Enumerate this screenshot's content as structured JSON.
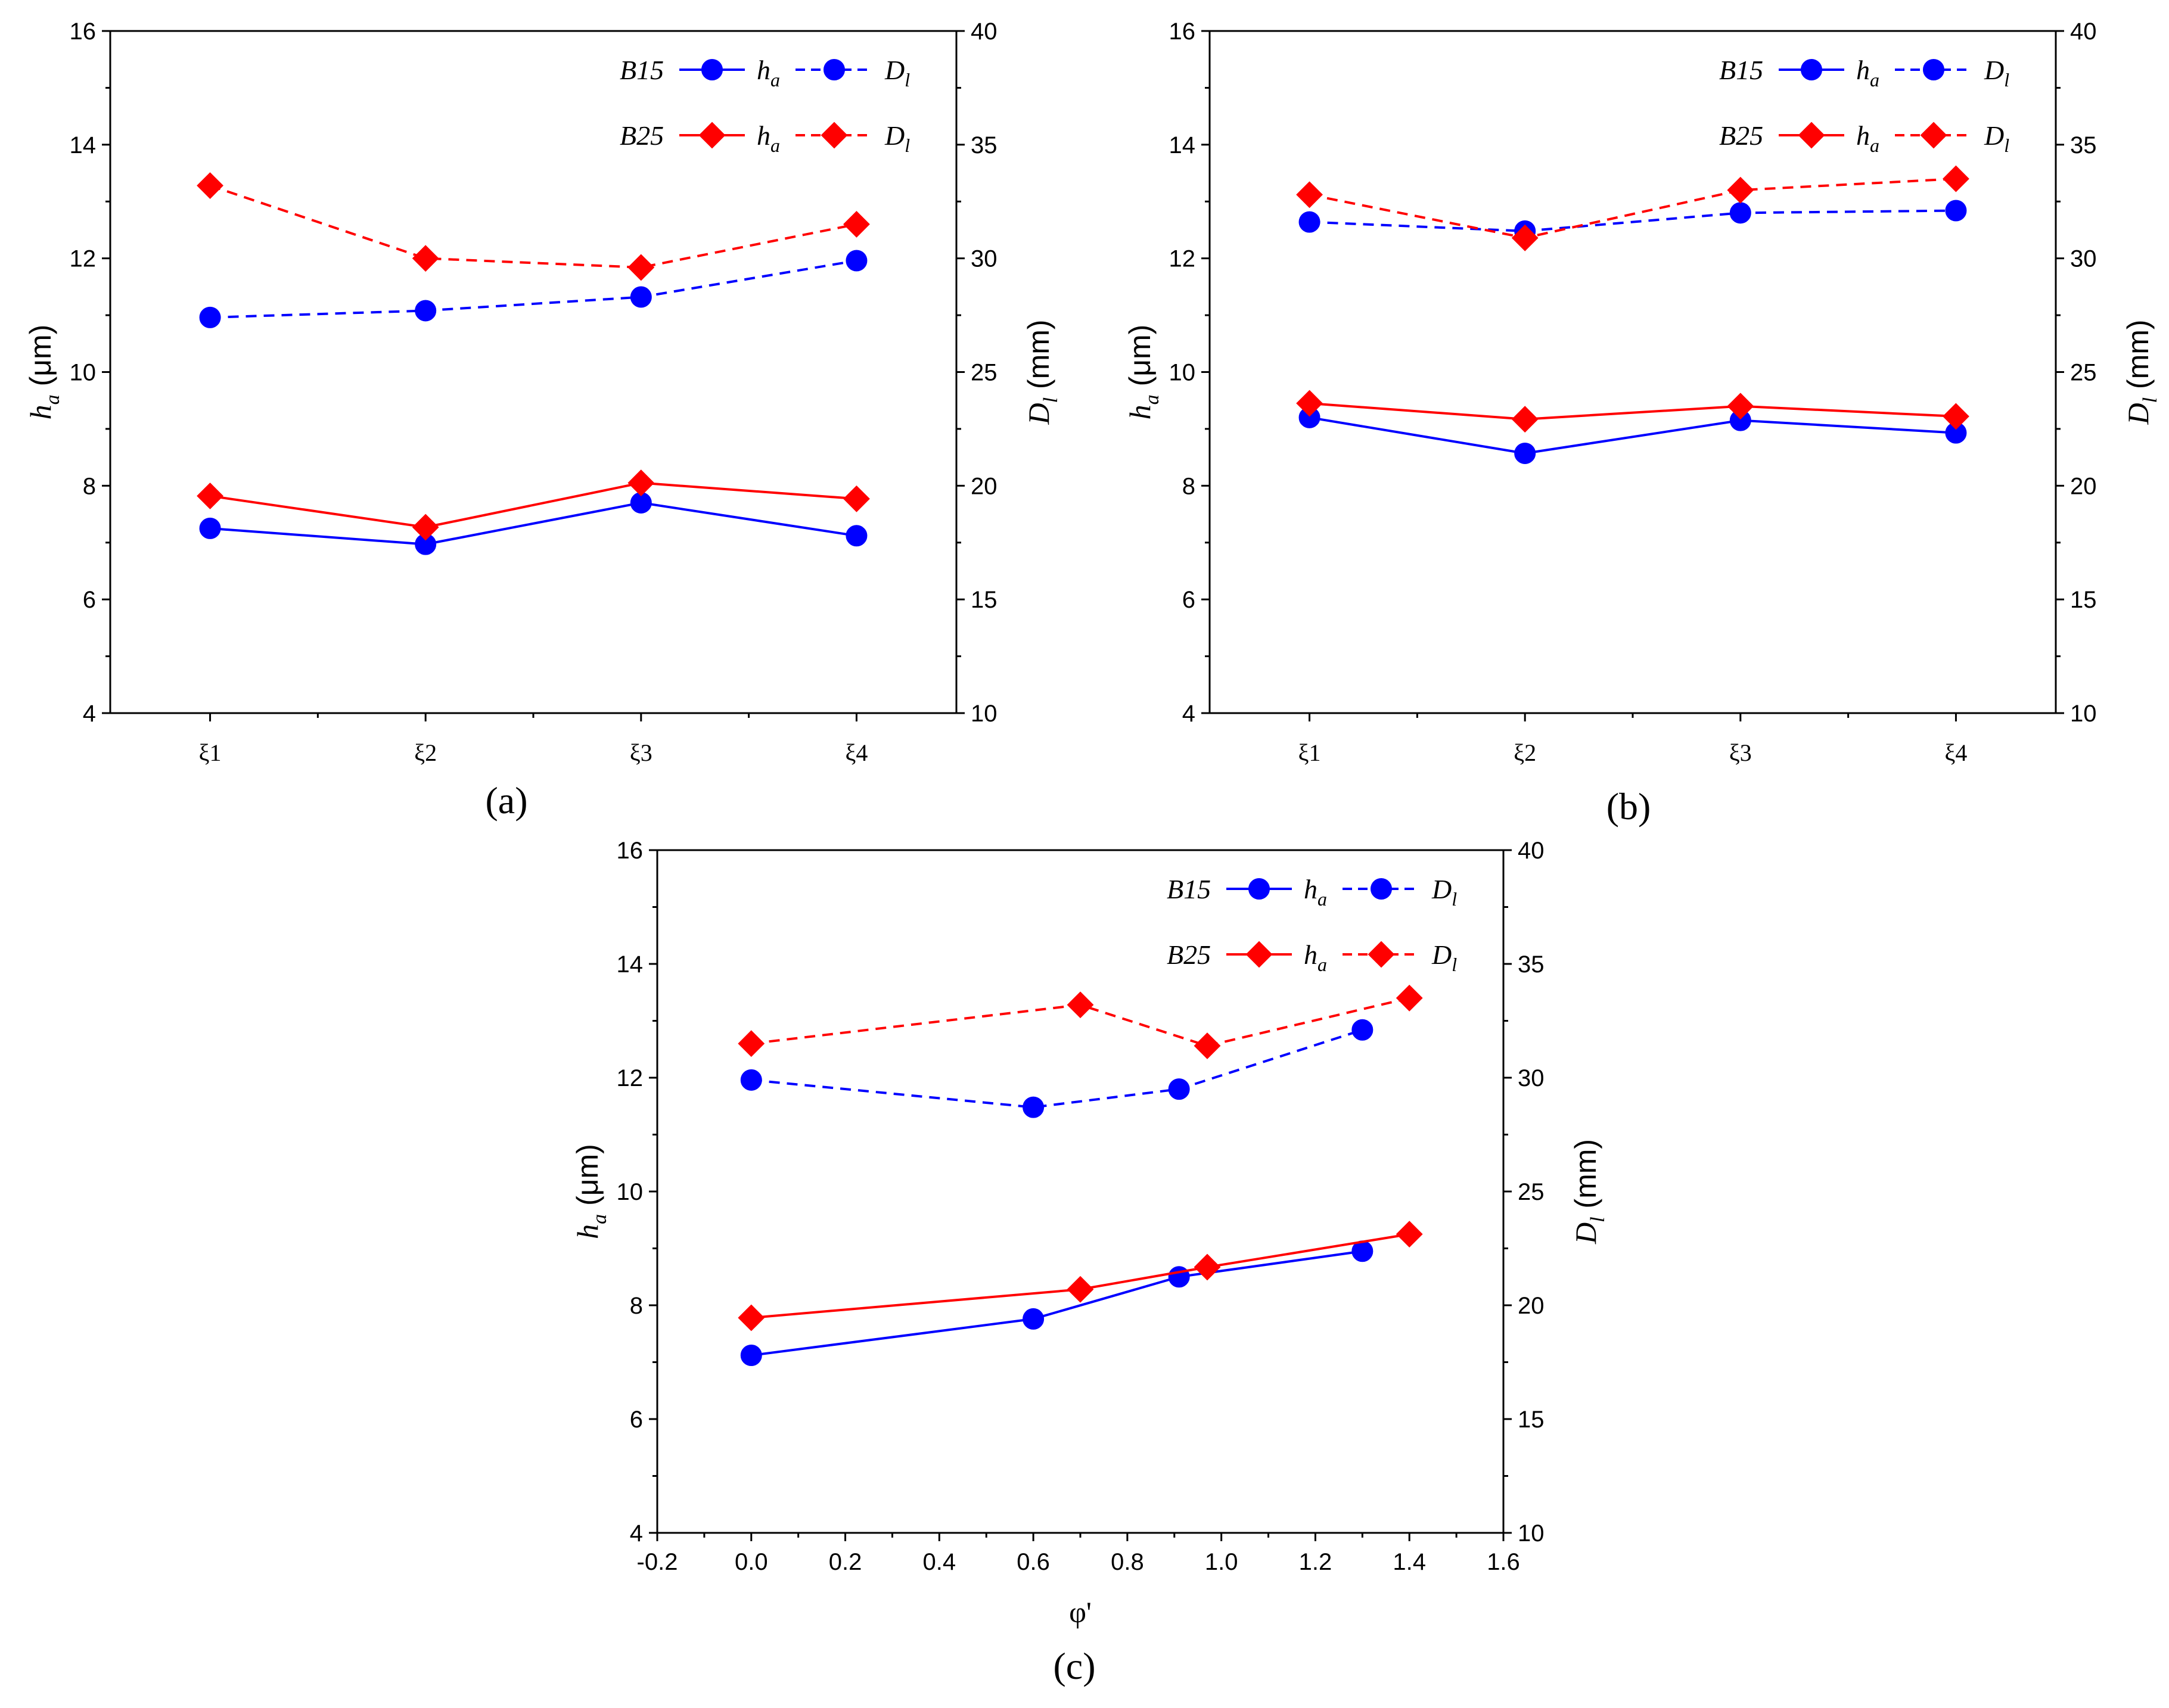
{
  "colors": {
    "b15": "#0000ff",
    "b25": "#ff0000",
    "axis": "#000000"
  },
  "legend": {
    "rows": [
      {
        "group": "B15",
        "color_key": "b15",
        "marker": "circle",
        "ha_label": "h",
        "ha_sub": "a",
        "dl_label": "D",
        "dl_sub": "l"
      },
      {
        "group": "B25",
        "color_key": "b25",
        "marker": "diamond",
        "ha_label": "h",
        "ha_sub": "a",
        "dl_label": "D",
        "dl_sub": "l"
      }
    ]
  },
  "chart_data": [
    {
      "type": "line",
      "panel_label": "(a)",
      "x_type": "category",
      "categories": [
        "ξ1",
        "ξ2",
        "ξ3",
        "ξ4"
      ],
      "xlabel": "",
      "ylabel_left": {
        "main": "h",
        "sub": "a",
        "unit": " (μm)"
      },
      "ylabel_right": {
        "main": "D",
        "sub": "l",
        "unit": " (mm)"
      },
      "ylim_left": [
        4,
        16
      ],
      "yticks_left": [
        4,
        6,
        8,
        10,
        12,
        14,
        16
      ],
      "ylim_right": [
        10,
        40
      ],
      "yticks_right": [
        10,
        15,
        20,
        25,
        30,
        35,
        40
      ],
      "grid": false,
      "legend_position": "top-right",
      "series": [
        {
          "name": "B15 h_a",
          "axis": "left",
          "style": "solid",
          "marker": "circle",
          "color_key": "b15",
          "x": [
            0,
            1,
            2,
            3
          ],
          "values": [
            7.25,
            6.97,
            7.7,
            7.12
          ]
        },
        {
          "name": "B15 D_l",
          "axis": "right",
          "style": "dashed",
          "marker": "circle",
          "color_key": "b15",
          "x": [
            0,
            1,
            2,
            3
          ],
          "values": [
            27.4,
            27.7,
            28.3,
            29.9
          ]
        },
        {
          "name": "B25 h_a",
          "axis": "left",
          "style": "solid",
          "marker": "diamond",
          "color_key": "b25",
          "x": [
            0,
            1,
            2,
            3
          ],
          "values": [
            7.82,
            7.27,
            8.05,
            7.77
          ]
        },
        {
          "name": "B25 D_l",
          "axis": "right",
          "style": "dashed",
          "marker": "diamond",
          "color_key": "b25",
          "x": [
            0,
            1,
            2,
            3
          ],
          "values": [
            33.2,
            30.0,
            29.6,
            31.5
          ]
        }
      ]
    },
    {
      "type": "line",
      "panel_label": "(b)",
      "x_type": "category",
      "categories": [
        "ξ1",
        "ξ2",
        "ξ3",
        "ξ4"
      ],
      "xlabel": "",
      "ylabel_left": {
        "main": "h",
        "sub": "a",
        "unit": " (μm)"
      },
      "ylabel_right": {
        "main": "D",
        "sub": "l",
        "unit": " (mm)"
      },
      "ylim_left": [
        4,
        16
      ],
      "yticks_left": [
        4,
        6,
        8,
        10,
        12,
        14,
        16
      ],
      "ylim_right": [
        10,
        40
      ],
      "yticks_right": [
        10,
        15,
        20,
        25,
        30,
        35,
        40
      ],
      "grid": false,
      "legend_position": "top-right",
      "series": [
        {
          "name": "B15 h_a",
          "axis": "left",
          "style": "solid",
          "marker": "circle",
          "color_key": "b15",
          "x": [
            0,
            1,
            2,
            3
          ],
          "values": [
            9.2,
            8.57,
            9.15,
            8.93
          ]
        },
        {
          "name": "B15 D_l",
          "axis": "right",
          "style": "dashed",
          "marker": "circle",
          "color_key": "b15",
          "x": [
            0,
            1,
            2,
            3
          ],
          "values": [
            31.6,
            31.2,
            32.0,
            32.1
          ]
        },
        {
          "name": "B25 h_a",
          "axis": "left",
          "style": "solid",
          "marker": "diamond",
          "color_key": "b25",
          "x": [
            0,
            1,
            2,
            3
          ],
          "values": [
            9.45,
            9.17,
            9.4,
            9.22
          ]
        },
        {
          "name": "B25 D_l",
          "axis": "right",
          "style": "dashed",
          "marker": "diamond",
          "color_key": "b25",
          "x": [
            0,
            1,
            2,
            3
          ],
          "values": [
            32.8,
            30.9,
            33.0,
            33.5
          ]
        }
      ]
    },
    {
      "type": "line",
      "panel_label": "(c)",
      "x_type": "numeric",
      "xlabel": "φ'",
      "xlim": [
        -0.2,
        1.6
      ],
      "xticks": [
        -0.2,
        0.0,
        0.2,
        0.4,
        0.6,
        0.8,
        1.0,
        1.2,
        1.4,
        1.6
      ],
      "xtick_labels": [
        "-0.2",
        "0.0",
        "0.2",
        "0.4",
        "0.6",
        "0.8",
        "1.0",
        "1.2",
        "1.4",
        "1.6"
      ],
      "ylabel_left": {
        "main": "h",
        "sub": "a",
        "unit": " (μm)"
      },
      "ylabel_right": {
        "main": "D",
        "sub": "l",
        "unit": " (mm)"
      },
      "ylim_left": [
        4,
        16
      ],
      "yticks_left": [
        4,
        6,
        8,
        10,
        12,
        14,
        16
      ],
      "ylim_right": [
        10,
        40
      ],
      "yticks_right": [
        10,
        15,
        20,
        25,
        30,
        35,
        40
      ],
      "grid": false,
      "legend_position": "top-right",
      "series": [
        {
          "name": "B15 h_a",
          "axis": "left",
          "style": "solid",
          "marker": "circle",
          "color_key": "b15",
          "x": [
            0.0,
            0.6,
            0.91,
            1.3
          ],
          "values": [
            7.12,
            7.76,
            8.5,
            8.95
          ]
        },
        {
          "name": "B15 D_l",
          "axis": "right",
          "style": "dashed",
          "marker": "circle",
          "color_key": "b15",
          "x": [
            0.0,
            0.6,
            0.91,
            1.3
          ],
          "values": [
            29.9,
            28.7,
            29.5,
            32.1
          ]
        },
        {
          "name": "B25 h_a",
          "axis": "left",
          "style": "solid",
          "marker": "diamond",
          "color_key": "b25",
          "x": [
            0.0,
            0.7,
            0.97,
            1.4
          ],
          "values": [
            7.78,
            8.28,
            8.67,
            9.25
          ]
        },
        {
          "name": "B25 D_l",
          "axis": "right",
          "style": "dashed",
          "marker": "diamond",
          "color_key": "b25",
          "x": [
            0.0,
            0.7,
            0.97,
            1.4
          ],
          "values": [
            31.5,
            33.2,
            31.4,
            33.5
          ]
        }
      ]
    }
  ]
}
